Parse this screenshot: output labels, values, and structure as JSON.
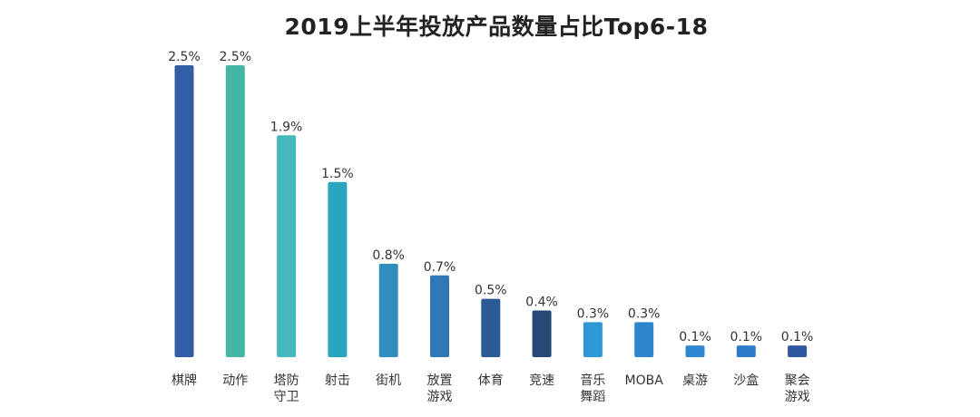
{
  "chart_data": {
    "type": "bar",
    "title": "2019上半年投放产品数量占比Top6-18",
    "xlabel": "",
    "ylabel": "",
    "unit": "%",
    "ylim": [
      0,
      2.5
    ],
    "grid": false,
    "categories": [
      "棋牌",
      "动作",
      "塔防守卫",
      "射击",
      "街机",
      "放置游戏",
      "体育",
      "竞速",
      "音乐舞蹈",
      "MOBA",
      "桌游",
      "沙盒",
      "聚会游戏"
    ],
    "category_lines": [
      [
        "棋牌"
      ],
      [
        "动作"
      ],
      [
        "塔防",
        "守卫"
      ],
      [
        "射击"
      ],
      [
        "街机"
      ],
      [
        "放置",
        "游戏"
      ],
      [
        "体育"
      ],
      [
        "竞速"
      ],
      [
        "音乐",
        "舞蹈"
      ],
      [
        "MOBA"
      ],
      [
        "桌游"
      ],
      [
        "沙盒"
      ],
      [
        "聚会",
        "游戏"
      ]
    ],
    "values": [
      2.5,
      2.5,
      1.9,
      1.5,
      0.8,
      0.7,
      0.5,
      0.4,
      0.3,
      0.3,
      0.1,
      0.1,
      0.1
    ],
    "value_labels": [
      "2.5%",
      "2.5%",
      "1.9%",
      "1.5%",
      "0.8%",
      "0.7%",
      "0.5%",
      "0.4%",
      "0.3%",
      "0.3%",
      "0.1%",
      "0.1%",
      "0.1%"
    ],
    "colors": [
      "#345ea3",
      "#43b7a4",
      "#44b8be",
      "#2aa5bf",
      "#318fbf",
      "#2e79b5",
      "#2c5a94",
      "#264975",
      "#2e97d4",
      "#2d86cc",
      "#2e88d2",
      "#2e7cc8",
      "#2f57a2"
    ]
  }
}
